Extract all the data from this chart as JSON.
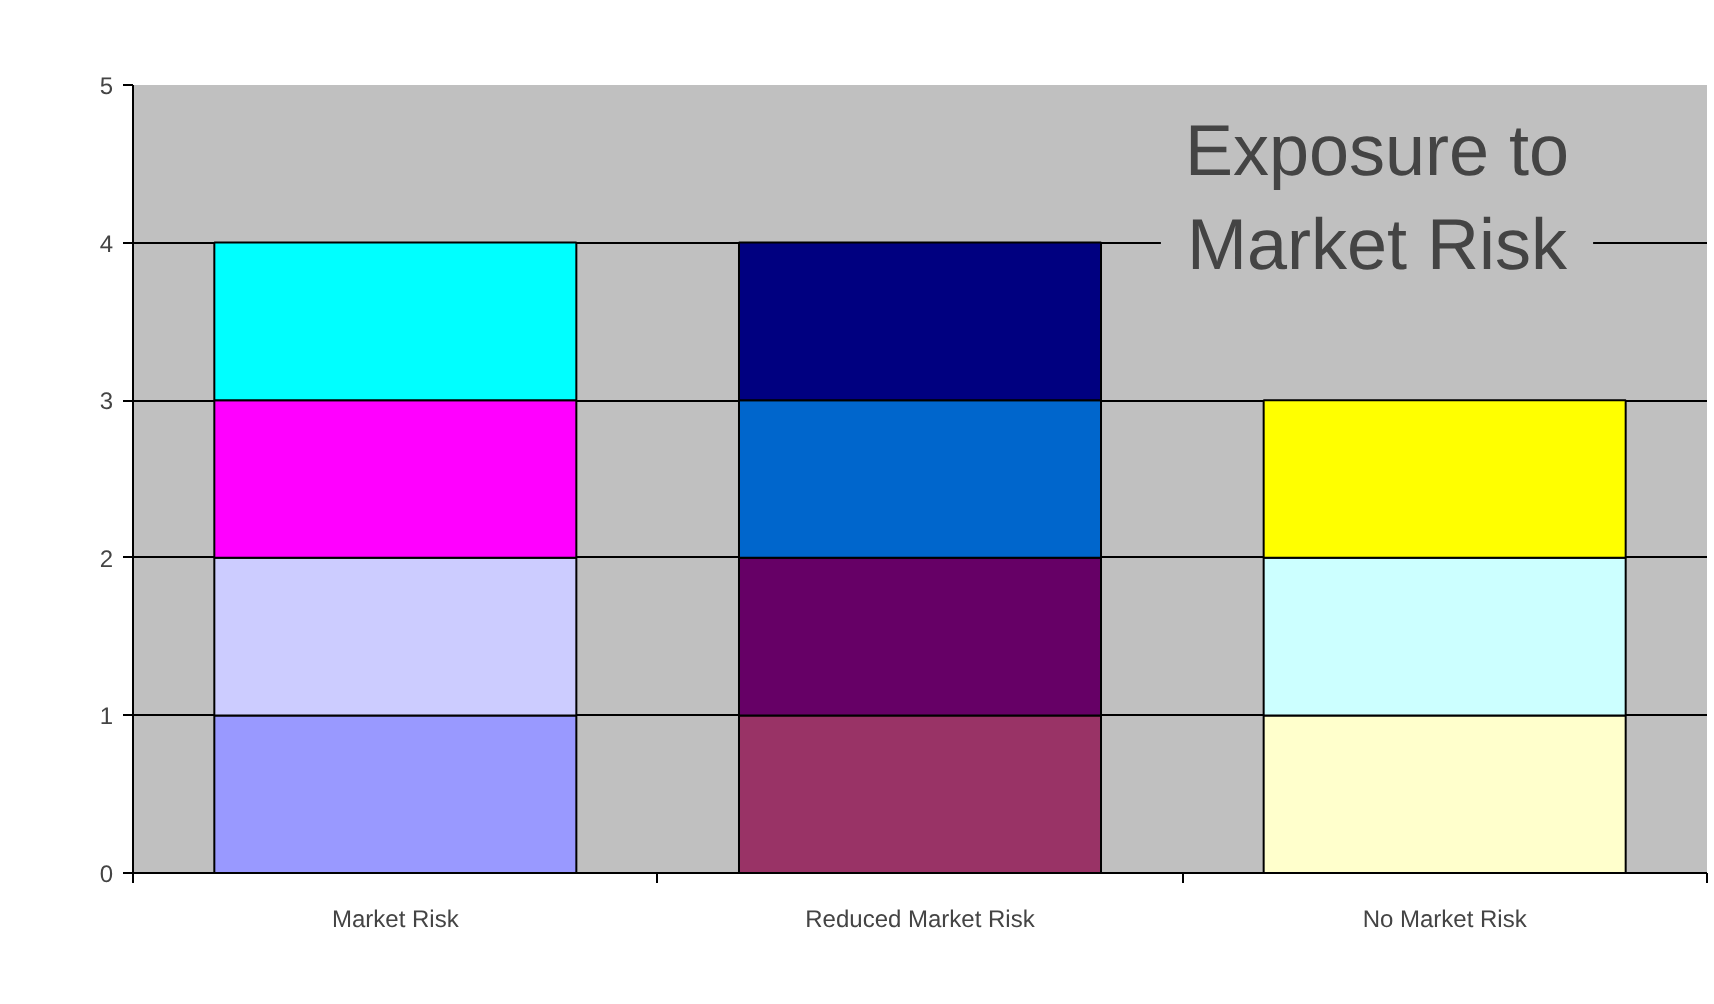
{
  "chart_data": {
    "type": "bar",
    "title": "Exposure to\nMarket Risk",
    "stacked": true,
    "categories": [
      "Market Risk",
      "Reduced Market Risk",
      "No Market Risk"
    ],
    "series": [
      {
        "colors": [
          "#9999ff",
          "#993366",
          "#ffffcc"
        ],
        "values": [
          1,
          1,
          1
        ]
      },
      {
        "colors": [
          "#ccccff",
          "#660066",
          "#ccffff"
        ],
        "values": [
          1,
          1,
          1
        ]
      },
      {
        "colors": [
          "#ff00ff",
          "#0066cc",
          "#ffff00"
        ],
        "values": [
          1,
          1,
          1
        ]
      },
      {
        "colors": [
          "#00ffff",
          "#000080",
          null
        ],
        "values": [
          1,
          1,
          null
        ]
      }
    ],
    "ylim": [
      0,
      5
    ],
    "yticks": [
      0,
      1,
      2,
      3,
      4,
      5
    ],
    "grid": "y"
  }
}
